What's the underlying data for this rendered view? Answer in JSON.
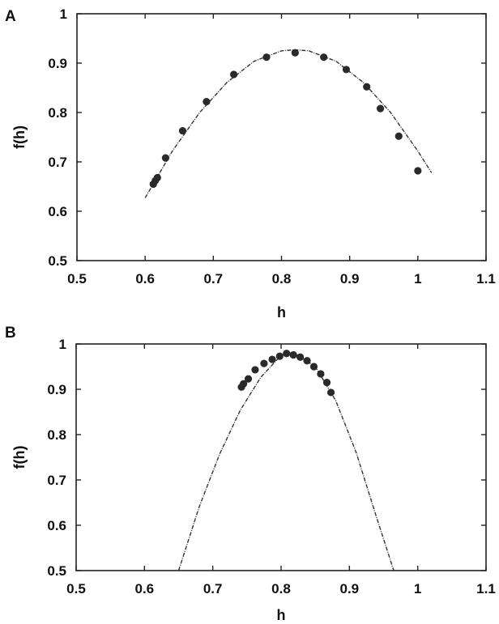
{
  "chart_data": [
    {
      "type": "scatter",
      "panel_label": "A",
      "xlabel": "h",
      "ylabel": "f(h)",
      "xlim": [
        0.5,
        1.1
      ],
      "ylim": [
        0.5,
        1.0
      ],
      "xticks": [
        0.5,
        0.6,
        0.7,
        0.8,
        0.9,
        1.0,
        1.1
      ],
      "xtick_labels": [
        "0.5",
        "0.6",
        "0.7",
        "0.8",
        "0.9",
        "1",
        "1.1"
      ],
      "yticks": [
        0.5,
        0.6,
        0.7,
        0.8,
        0.9,
        1.0
      ],
      "ytick_labels": [
        "0.5",
        "0.6",
        "0.7",
        "0.8",
        "0.9",
        "1"
      ],
      "grid": false,
      "points": {
        "x": [
          0.612,
          0.615,
          0.618,
          0.63,
          0.655,
          0.69,
          0.73,
          0.778,
          0.82,
          0.862,
          0.895,
          0.925,
          0.945,
          0.972,
          1.0
        ],
        "y": [
          0.655,
          0.662,
          0.668,
          0.708,
          0.763,
          0.822,
          0.877,
          0.912,
          0.921,
          0.912,
          0.887,
          0.852,
          0.808,
          0.752,
          0.682
        ]
      },
      "fit_curve": {
        "x": [
          0.6,
          0.64,
          0.68,
          0.72,
          0.76,
          0.8,
          0.82,
          0.84,
          0.88,
          0.92,
          0.96,
          1.0,
          1.02
        ],
        "y": [
          0.627,
          0.722,
          0.8,
          0.861,
          0.904,
          0.925,
          0.927,
          0.925,
          0.904,
          0.861,
          0.8,
          0.722,
          0.678
        ]
      }
    },
    {
      "type": "scatter",
      "panel_label": "B",
      "xlabel": "h",
      "ylabel": "f(h)",
      "xlim": [
        0.5,
        1.1
      ],
      "ylim": [
        0.5,
        1.0
      ],
      "xticks": [
        0.5,
        0.6,
        0.7,
        0.8,
        0.9,
        1.0,
        1.1
      ],
      "xtick_labels": [
        "0.5",
        "0.6",
        "0.7",
        "0.8",
        "0.9",
        "1",
        "1.1"
      ],
      "yticks": [
        0.5,
        0.6,
        0.7,
        0.8,
        0.9,
        1.0
      ],
      "ytick_labels": [
        "0.5",
        "0.6",
        "0.7",
        "0.8",
        "0.9",
        "1"
      ],
      "grid": false,
      "points": {
        "x": [
          0.742,
          0.745,
          0.752,
          0.762,
          0.775,
          0.787,
          0.798,
          0.808,
          0.818,
          0.828,
          0.838,
          0.848,
          0.858,
          0.867,
          0.873
        ],
        "y": [
          0.905,
          0.912,
          0.923,
          0.943,
          0.957,
          0.966,
          0.973,
          0.979,
          0.976,
          0.971,
          0.963,
          0.95,
          0.934,
          0.915,
          0.893
        ]
      },
      "fit_curve": {
        "x": [
          0.65,
          0.68,
          0.71,
          0.74,
          0.77,
          0.8,
          0.81,
          0.82,
          0.85,
          0.88,
          0.91,
          0.94,
          0.965
        ],
        "y": [
          0.5,
          0.64,
          0.757,
          0.853,
          0.926,
          0.975,
          0.98,
          0.979,
          0.95,
          0.875,
          0.76,
          0.616,
          0.49
        ]
      }
    }
  ]
}
